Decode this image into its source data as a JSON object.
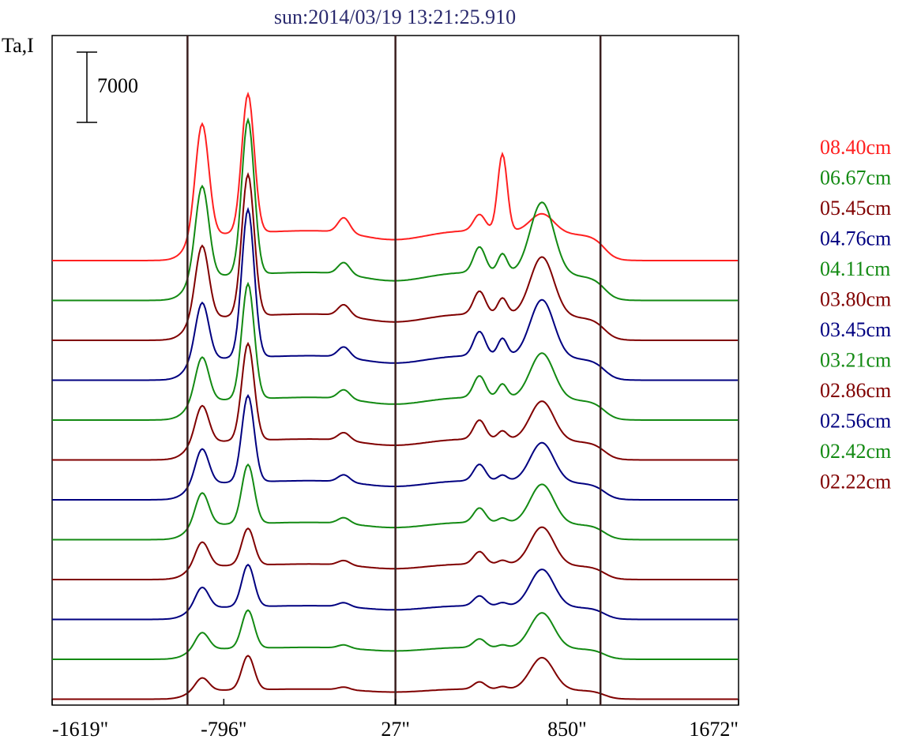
{
  "chart_data": {
    "type": "line",
    "title": "sun:2014/03/19 13:21:25.910",
    "ylabel": "Ta,I",
    "scale_bar_label": "7000",
    "x_ticks": [
      "-1619\"",
      "-796\"",
      "27\"",
      "850\"",
      "1672\""
    ],
    "x_tick_values": [
      -1619,
      -796,
      27,
      850,
      1672
    ],
    "xlim": [
      -1619,
      1672
    ],
    "vertical_lines_x": [
      -970,
      27,
      1010
    ],
    "grid": false,
    "legend_position": "right",
    "series": [
      {
        "name": "08.40cm",
        "color": "#ff2020",
        "baseline": 0,
        "peaks": [
          8.6,
          10.6,
          1.15,
          1.25,
          5.9,
          1.45
        ]
      },
      {
        "name": "06.67cm",
        "color": "#138a13",
        "baseline": -1,
        "peaks": [
          7.0,
          11.8,
          0.9,
          1.95,
          1.45,
          5.5
        ]
      },
      {
        "name": "05.45cm",
        "color": "#800000",
        "baseline": -2,
        "peaks": [
          5.6,
          10.8,
          0.85,
          1.75,
          1.25,
          4.5
        ]
      },
      {
        "name": "04.76cm",
        "color": "#000080",
        "baseline": -3,
        "peaks": [
          4.4,
          11.3,
          0.8,
          1.85,
          1.35,
          4.4
        ]
      },
      {
        "name": "04.11cm",
        "color": "#138a13",
        "baseline": -4,
        "peaks": [
          3.4,
          8.8,
          0.7,
          1.65,
          1.05,
          3.5
        ]
      },
      {
        "name": "03.80cm",
        "color": "#800000",
        "baseline": -5,
        "peaks": [
          2.85,
          7.4,
          0.6,
          1.45,
          0.65,
          3.0
        ]
      },
      {
        "name": "03.45cm",
        "color": "#000080",
        "baseline": -6,
        "peaks": [
          2.7,
          6.6,
          0.55,
          1.25,
          0.45,
          3.0
        ]
      },
      {
        "name": "03.21cm",
        "color": "#138a13",
        "baseline": -7,
        "peaks": [
          2.5,
          4.5,
          0.45,
          1.1,
          0.35,
          3.0
        ]
      },
      {
        "name": "02.86cm",
        "color": "#800000",
        "baseline": -8,
        "peaks": [
          1.9,
          2.8,
          0.35,
          0.95,
          0.3,
          2.9
        ]
      },
      {
        "name": "02.56cm",
        "color": "#000080",
        "baseline": -9,
        "peaks": [
          1.6,
          3.2,
          0.3,
          0.75,
          0.25,
          2.85
        ]
      },
      {
        "name": "02.42cm",
        "color": "#138a13",
        "baseline": -10,
        "peaks": [
          1.3,
          2.9,
          0.25,
          0.65,
          0.2,
          2.7
        ]
      },
      {
        "name": "02.22cm",
        "color": "#800000",
        "baseline": -11,
        "peaks": [
          1.0,
          2.6,
          0.2,
          0.55,
          0.2,
          2.45
        ]
      }
    ]
  }
}
